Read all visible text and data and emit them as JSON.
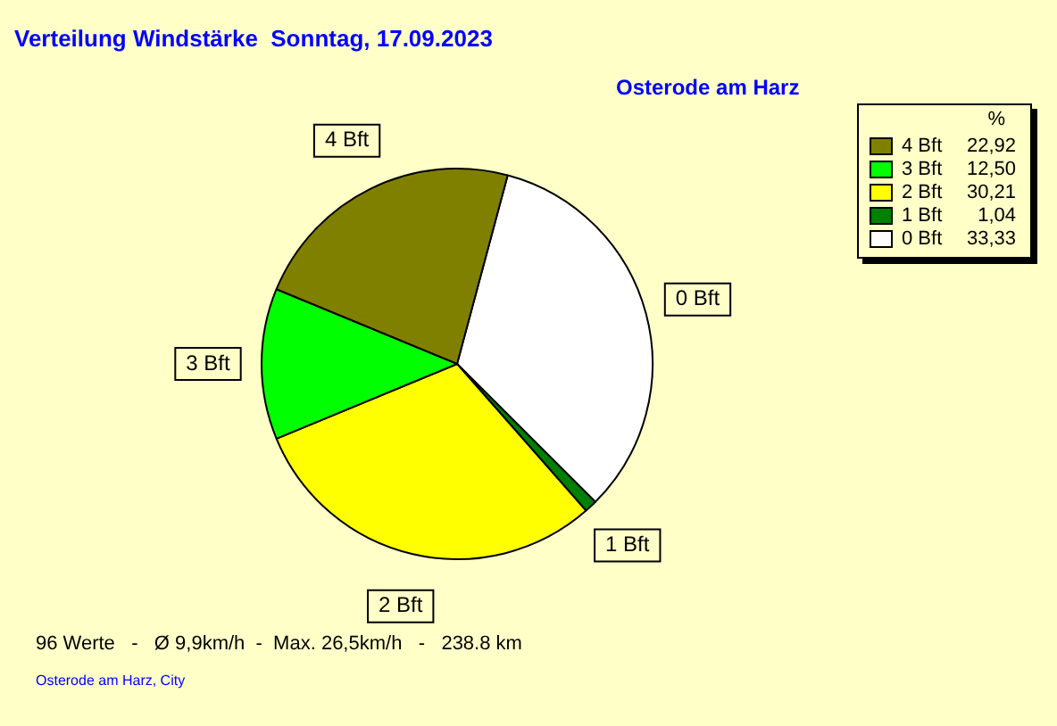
{
  "chart_data": {
    "type": "pie",
    "title": "Verteilung Windstärke  Sonntag, 17.09.2023",
    "subtitle": "Osterode am Harz",
    "legend_title": "%",
    "categories": [
      "0 Bft",
      "1 Bft",
      "2 Bft",
      "3 Bft",
      "4 Bft"
    ],
    "values": [
      33.33,
      1.04,
      30.21,
      12.5,
      22.92
    ],
    "value_labels": [
      "33,33",
      "1,04",
      "30,21",
      "12,50",
      "22,92"
    ],
    "colors": [
      "#ffffff",
      "#008000",
      "#ffff00",
      "#00ff00",
      "#808000"
    ],
    "legend": "top right",
    "annotations": [
      "96 Werte   -   Ø 9,9km/h  -  Max. 26,5km/h   -   238.8 km",
      "Osterode am Harz, City"
    ]
  }
}
